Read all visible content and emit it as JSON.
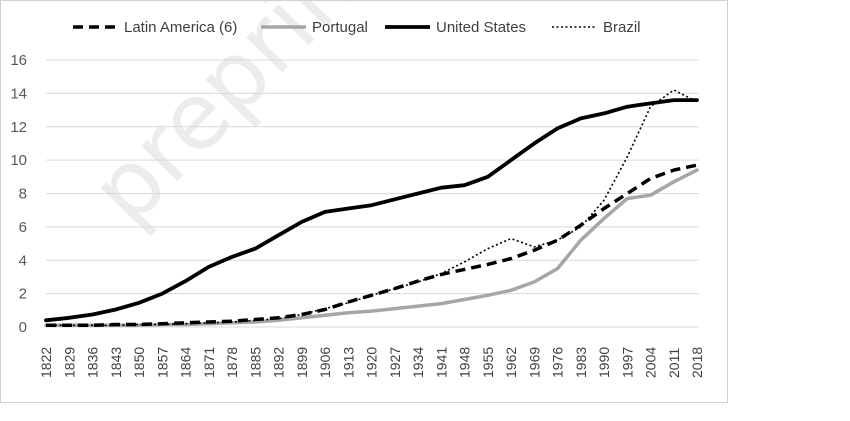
{
  "watermark": "preprint not peer reviewed",
  "chart_data": {
    "type": "line",
    "title": "",
    "xlabel": "",
    "ylabel": "",
    "ylim": [
      0,
      16
    ],
    "yticks": [
      0,
      2,
      4,
      6,
      8,
      10,
      12,
      14,
      16
    ],
    "grid": "horizontal",
    "legend_position": "top",
    "x": [
      1822,
      1829,
      1836,
      1843,
      1850,
      1857,
      1864,
      1871,
      1878,
      1885,
      1892,
      1899,
      1906,
      1913,
      1920,
      1927,
      1934,
      1941,
      1948,
      1955,
      1962,
      1969,
      1976,
      1983,
      1990,
      1997,
      2004,
      2011,
      2018
    ],
    "x_tick_labels": [
      "1822",
      "1829",
      "1836",
      "1843",
      "1850",
      "1857",
      "1864",
      "1871",
      "1878",
      "1885",
      "1892",
      "1899",
      "1906",
      "1913",
      "1920",
      "1927",
      "1934",
      "1941",
      "1948",
      "1955",
      "1962",
      "1969",
      "1976",
      "1983",
      "1990",
      "1997",
      "2004",
      "2011",
      "2018"
    ],
    "series": [
      {
        "name": "Latin America (6)",
        "color": "#000000",
        "style": "dashed",
        "values": [
          0.1,
          0.1,
          0.1,
          0.15,
          0.15,
          0.2,
          0.25,
          0.3,
          0.35,
          0.45,
          0.55,
          0.75,
          1.05,
          1.5,
          1.9,
          2.3,
          2.75,
          3.15,
          3.45,
          3.75,
          4.1,
          4.6,
          5.2,
          6.1,
          7.1,
          8.0,
          8.9,
          9.4,
          9.7
        ]
      },
      {
        "name": "Portugal",
        "color": "#a6a6a6",
        "style": "solid",
        "values": [
          0.1,
          0.1,
          0.1,
          0.1,
          0.1,
          0.15,
          0.15,
          0.2,
          0.25,
          0.3,
          0.4,
          0.55,
          0.7,
          0.85,
          0.95,
          1.1,
          1.25,
          1.4,
          1.65,
          1.9,
          2.2,
          2.7,
          3.5,
          5.2,
          6.5,
          7.7,
          7.9,
          8.7,
          9.4
        ]
      },
      {
        "name": "United States",
        "color": "#000000",
        "style": "solid-thick",
        "values": [
          0.4,
          0.55,
          0.75,
          1.05,
          1.45,
          2.0,
          2.75,
          3.6,
          4.2,
          4.7,
          5.5,
          6.3,
          6.9,
          7.1,
          7.3,
          7.65,
          8.0,
          8.35,
          8.5,
          9.0,
          10.0,
          11.0,
          11.9,
          12.5,
          12.8,
          13.2,
          13.4,
          13.6,
          13.6
        ]
      },
      {
        "name": "Brazil",
        "color": "#000000",
        "style": "dotted",
        "values": [
          0.1,
          0.1,
          0.1,
          0.1,
          0.15,
          0.15,
          0.2,
          0.25,
          0.3,
          0.4,
          0.5,
          0.75,
          1.1,
          1.45,
          1.9,
          2.3,
          2.7,
          3.2,
          3.9,
          4.7,
          5.3,
          4.8,
          5.2,
          6.0,
          7.6,
          10.2,
          13.2,
          14.2,
          13.5
        ]
      }
    ]
  }
}
